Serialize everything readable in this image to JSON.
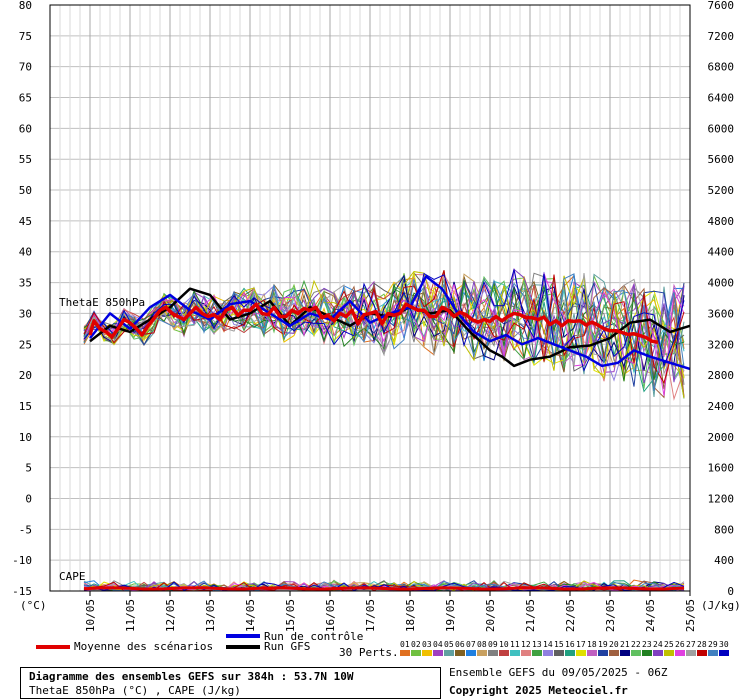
{
  "chart_data": {
    "type": "line",
    "title": "Diagramme des ensembles GEFS sur 384h : 53.7N 10W",
    "subtitle": "ThetaE 850hPa (°C) , CAPE (J/kg)",
    "run_label": "Ensemble GEFS du 09/05/2025 - 06Z",
    "copyright": "Copyright 2025 Meteociel.fr",
    "left_axis": {
      "unit": "(°C)",
      "ylim": [
        -15,
        80
      ],
      "ticks": [
        80,
        75,
        70,
        65,
        60,
        55,
        50,
        45,
        40,
        35,
        30,
        25,
        20,
        15,
        10,
        5,
        0,
        -5,
        -10,
        -15
      ]
    },
    "right_axis": {
      "unit": "(J/kg)",
      "ylim": [
        0,
        7600
      ],
      "ticks": [
        7600,
        7200,
        6800,
        6400,
        6000,
        5600,
        5200,
        4800,
        4400,
        4000,
        3600,
        3200,
        2800,
        2400,
        2000,
        1600,
        1200,
        800,
        400,
        0
      ]
    },
    "x_labels": [
      "10/05",
      "11/05",
      "12/05",
      "13/05",
      "14/05",
      "15/05",
      "16/05",
      "17/05",
      "18/05",
      "19/05",
      "20/05",
      "21/05",
      "22/05",
      "23/05",
      "24/05",
      "25/05"
    ],
    "annotations": {
      "thetae": "ThetaE 850hPa",
      "cape": "CAPE"
    },
    "legend": {
      "mean": "Moyenne des scénarios",
      "control": "Run de contrôle",
      "gfs": "Run GFS",
      "perts": "30 Perts."
    },
    "pert_ids": [
      "01",
      "02",
      "03",
      "04",
      "05",
      "06",
      "07",
      "08",
      "09",
      "10",
      "11",
      "12",
      "13",
      "14",
      "15",
      "16",
      "17",
      "18",
      "19",
      "20",
      "21",
      "22",
      "23",
      "24",
      "25",
      "26",
      "27",
      "28",
      "29",
      "30"
    ],
    "pert_colors": [
      "#e07020",
      "#70c040",
      "#f0c000",
      "#a040c0",
      "#60a0a0",
      "#806020",
      "#2080e0",
      "#c8a060",
      "#808080",
      "#c04040",
      "#40c0c0",
      "#e08080",
      "#40a040",
      "#9080e0",
      "#606060",
      "#20a080",
      "#e0e000",
      "#c060c0",
      "#2040a0",
      "#a06040",
      "#000080",
      "#60c060",
      "#208020",
      "#8040c0",
      "#c0c000",
      "#e040e0",
      "#a0a0a0",
      "#c00000",
      "#4080c0",
      "#0000c0"
    ],
    "mean_series": [
      [
        0,
        26.5
      ],
      [
        0.1,
        28.8
      ],
      [
        0.25,
        27.5
      ],
      [
        0.4,
        27
      ],
      [
        0.55,
        26.2
      ],
      [
        0.7,
        27.5
      ],
      [
        0.85,
        29
      ],
      [
        1,
        28.5
      ],
      [
        1.15,
        27.6
      ],
      [
        1.3,
        26.5
      ],
      [
        1.45,
        28
      ],
      [
        1.6,
        29.2
      ],
      [
        1.75,
        30.5
      ],
      [
        1.9,
        31
      ],
      [
        2.05,
        30
      ],
      [
        2.2,
        29.5
      ],
      [
        2.35,
        29
      ],
      [
        2.5,
        30
      ],
      [
        2.65,
        31
      ],
      [
        2.8,
        30
      ],
      [
        2.95,
        29.5
      ],
      [
        3.1,
        29.8
      ],
      [
        3.25,
        29
      ],
      [
        3.4,
        30.5
      ],
      [
        3.55,
        31
      ],
      [
        3.7,
        29.7
      ],
      [
        3.85,
        30.5
      ],
      [
        4,
        30.5
      ],
      [
        4.15,
        31.5
      ],
      [
        4.3,
        30
      ],
      [
        4.45,
        29.8
      ],
      [
        4.6,
        31
      ],
      [
        4.75,
        29.5
      ],
      [
        4.9,
        29.5
      ],
      [
        5.05,
        30.5
      ],
      [
        5.2,
        30
      ],
      [
        5.35,
        30.8
      ],
      [
        5.5,
        30.5
      ],
      [
        5.65,
        31
      ],
      [
        5.8,
        29.3
      ],
      [
        5.95,
        29.7
      ],
      [
        6.1,
        28.8
      ],
      [
        6.25,
        30
      ],
      [
        6.4,
        29.5
      ],
      [
        6.55,
        30.5
      ],
      [
        6.7,
        28.3
      ],
      [
        6.85,
        29.8
      ],
      [
        7,
        30
      ],
      [
        7.15,
        30.3
      ],
      [
        7.3,
        28.3
      ],
      [
        7.45,
        30
      ],
      [
        7.6,
        29.7
      ],
      [
        7.75,
        30
      ],
      [
        7.9,
        31.5
      ],
      [
        8.05,
        31
      ],
      [
        8.2,
        30.5
      ],
      [
        8.35,
        30.5
      ],
      [
        8.5,
        29.5
      ],
      [
        8.65,
        29.5
      ],
      [
        8.8,
        31
      ],
      [
        8.95,
        30.5
      ],
      [
        9.1,
        29.5
      ],
      [
        9.25,
        30.2
      ],
      [
        9.4,
        29.8
      ],
      [
        9.55,
        29
      ],
      [
        9.7,
        28.6
      ],
      [
        9.85,
        29
      ],
      [
        10,
        28.7
      ],
      [
        10.15,
        29.5
      ],
      [
        10.3,
        28.8
      ],
      [
        10.45,
        29.5
      ],
      [
        10.6,
        30
      ],
      [
        10.75,
        29.8
      ],
      [
        10.9,
        29.3
      ],
      [
        11.05,
        29.3
      ],
      [
        11.2,
        29
      ],
      [
        11.35,
        29.4
      ],
      [
        11.5,
        28.2
      ],
      [
        11.65,
        28.8
      ],
      [
        11.8,
        28
      ],
      [
        11.95,
        28.8
      ],
      [
        12.1,
        28.7
      ],
      [
        12.25,
        28.8
      ],
      [
        12.4,
        28.1
      ],
      [
        12.55,
        28.6
      ],
      [
        12.7,
        28.1
      ],
      [
        12.85,
        27.5
      ],
      [
        13,
        27.2
      ],
      [
        13.15,
        27.2
      ],
      [
        13.3,
        26.9
      ],
      [
        13.45,
        26.6
      ],
      [
        13.6,
        26.7
      ],
      [
        13.75,
        26.4
      ],
      [
        13.9,
        26.1
      ],
      [
        14.05,
        25.5
      ],
      [
        14.2,
        25.3
      ]
    ],
    "control_series": [
      [
        0,
        26
      ],
      [
        0.5,
        30
      ],
      [
        1,
        27.5
      ],
      [
        1.5,
        31
      ],
      [
        2,
        33
      ],
      [
        2.5,
        30.5
      ],
      [
        3,
        29
      ],
      [
        3.5,
        31.5
      ],
      [
        4,
        32
      ],
      [
        4.5,
        30
      ],
      [
        5,
        28
      ],
      [
        5.5,
        30
      ],
      [
        6,
        29
      ],
      [
        6.5,
        32
      ],
      [
        7,
        28.5
      ],
      [
        7.5,
        30
      ],
      [
        8,
        31
      ],
      [
        8.4,
        36
      ],
      [
        8.8,
        34
      ],
      [
        9.2,
        30
      ],
      [
        9.6,
        27
      ],
      [
        10,
        25.5
      ],
      [
        10.4,
        26.5
      ],
      [
        10.8,
        25
      ],
      [
        11.2,
        26
      ],
      [
        11.6,
        25
      ],
      [
        12,
        24
      ],
      [
        12.4,
        23
      ],
      [
        12.8,
        21.5
      ],
      [
        13.2,
        22
      ],
      [
        13.6,
        24
      ],
      [
        14,
        23
      ],
      [
        14.5,
        22
      ],
      [
        15,
        21
      ]
    ],
    "gfs_series": [
      [
        0,
        25.5
      ],
      [
        0.5,
        28
      ],
      [
        1,
        27
      ],
      [
        1.5,
        29
      ],
      [
        2,
        31
      ],
      [
        2.5,
        34
      ],
      [
        3,
        33
      ],
      [
        3.5,
        29
      ],
      [
        4,
        30
      ],
      [
        4.5,
        32
      ],
      [
        5,
        28
      ],
      [
        5.5,
        31
      ],
      [
        6,
        29.5
      ],
      [
        6.5,
        28
      ],
      [
        7,
        30
      ],
      [
        7.5,
        29.5
      ],
      [
        8,
        31
      ],
      [
        8.5,
        30
      ],
      [
        9,
        30.5
      ],
      [
        9.5,
        27
      ],
      [
        10,
        24
      ],
      [
        10.3,
        23
      ],
      [
        10.6,
        21.5
      ],
      [
        11,
        22.5
      ],
      [
        11.5,
        23
      ],
      [
        12,
        24.5
      ],
      [
        12.5,
        24.8
      ],
      [
        13,
        26
      ],
      [
        13.5,
        28.5
      ],
      [
        14,
        29
      ],
      [
        14.5,
        27
      ],
      [
        15,
        28
      ]
    ]
  }
}
